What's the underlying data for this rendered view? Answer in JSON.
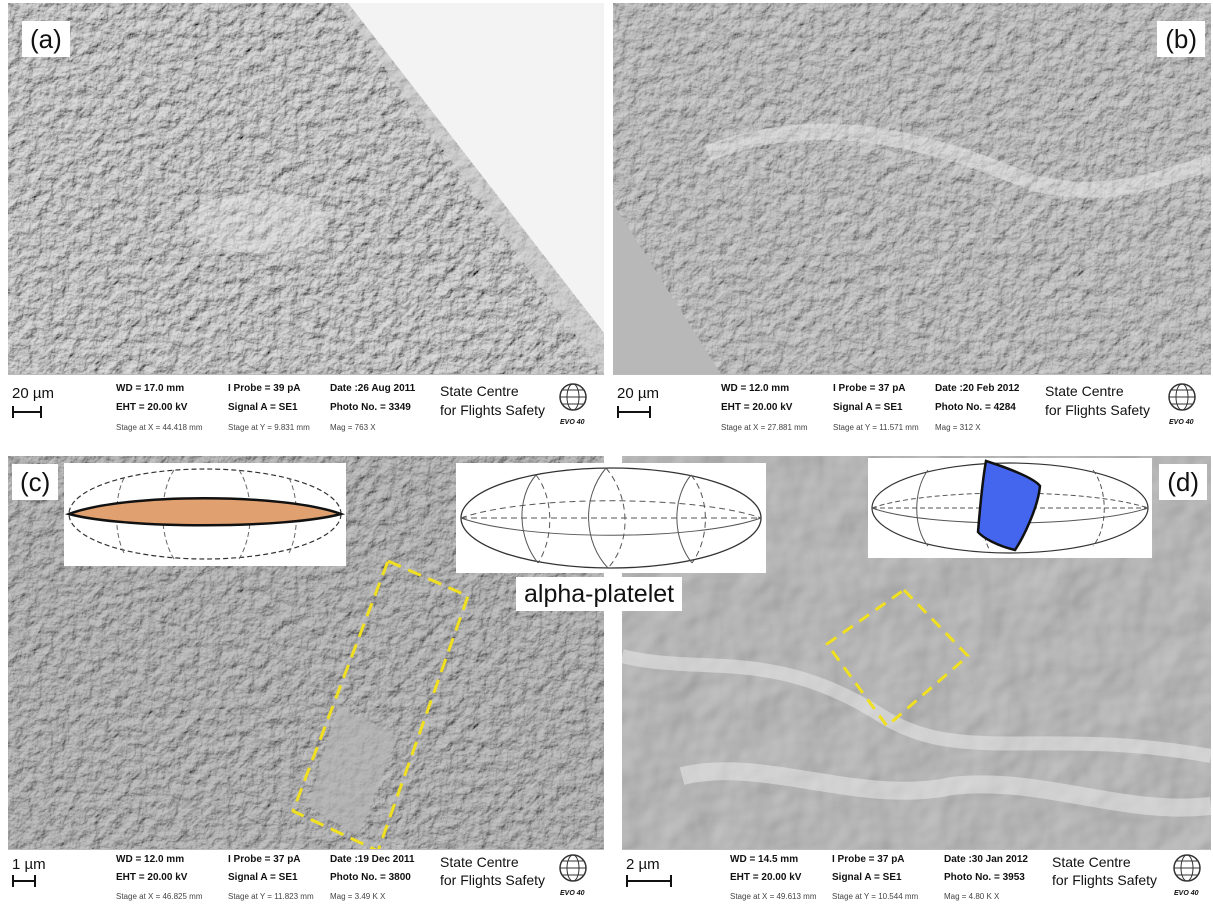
{
  "panels": [
    {
      "label": "(a)",
      "scale": "20 µm",
      "wd": "WD = 17.0 mm",
      "eht": "EHT = 20.00 kV",
      "probe": "I Probe =     39 pA",
      "signal": "Signal A = SE1",
      "date": "Date :26 Aug 2011",
      "photo": "Photo No. = 3349",
      "stage_x": "Stage at X = 44.418 mm",
      "stage_y": "Stage at Y =  9.831 mm",
      "mag": "Mag =   763 X",
      "org_line1": "State Centre",
      "org_line2": "for Flights Safety",
      "logo": "EVO 40"
    },
    {
      "label": "(b)",
      "scale": "20 µm",
      "wd": "WD = 12.0 mm",
      "eht": "EHT = 20.00 kV",
      "probe": "I Probe =     37 pA",
      "signal": "Signal A = SE1",
      "date": "Date :20 Feb 2012",
      "photo": "Photo No. = 4284",
      "stage_x": "Stage at X = 27.881 mm",
      "stage_y": "Stage at Y = 11.571 mm",
      "mag": "Mag =   312 X",
      "org_line1": "State Centre",
      "org_line2": "for Flights Safety",
      "logo": "EVO 40"
    },
    {
      "label": "(c)",
      "scale": "1 µm",
      "wd": "WD = 12.0 mm",
      "eht": "EHT = 20.00 kV",
      "probe": "I Probe =     37 pA",
      "signal": "Signal A = SE1",
      "date": "Date :19 Dec 2011",
      "photo": "Photo No. = 3800",
      "stage_x": "Stage at X = 46.825 mm",
      "stage_y": "Stage at Y = 11.823 mm",
      "mag": "Mag =   3.49 K X",
      "org_line1": "State Centre",
      "org_line2": "for Flights Safety",
      "logo": "EVO 40"
    },
    {
      "label": "(d)",
      "scale": "2 µm",
      "wd": "WD = 14.5 mm",
      "eht": "EHT = 20.00 kV",
      "probe": "I Probe =     37 pA",
      "signal": "Signal A = SE1",
      "date": "Date :30 Jan 2012",
      "photo": "Photo No. = 3953",
      "stage_x": "Stage at X = 49.613 mm",
      "stage_y": "Stage at Y = 10.544 mm",
      "mag": "Mag =   4.80 K X",
      "org_line1": "State Centre",
      "org_line2": "for Flights Safety",
      "logo": "EVO 40"
    }
  ],
  "center_caption": "alpha-platelet",
  "colors": {
    "platelet_fill_left": "#e0a070",
    "platelet_fill_right": "#4466ee",
    "highlight_box": "#f0e020"
  }
}
